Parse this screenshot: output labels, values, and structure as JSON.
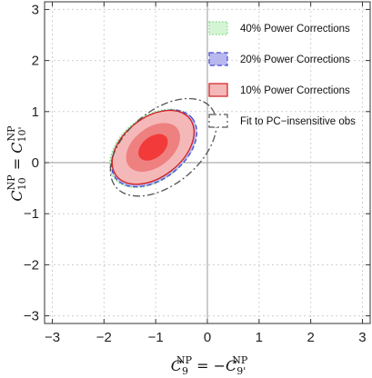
{
  "chart_data": {
    "type": "contour",
    "xlabel": {
      "main": "C",
      "sub1": "9",
      "sup1": "NP",
      "mid": " = −",
      "main2": "C",
      "sub2": "9'",
      "sup2": "NP"
    },
    "ylabel": {
      "main": "C",
      "sub1": "10",
      "sup1": "NP",
      "mid": " = ",
      "main2": "C",
      "sub2": "10'",
      "sup2": "NP"
    },
    "xlim": [
      -3.15,
      3.15
    ],
    "ylim": [
      -3.15,
      3.15
    ],
    "xticks": [
      -3,
      -2,
      -1,
      0,
      1,
      2,
      3
    ],
    "yticks": [
      -3,
      -2,
      -1,
      0,
      1,
      2,
      3
    ],
    "tick_labels_x": [
      "−3",
      "−2",
      "−1",
      "0",
      "1",
      "2",
      "3"
    ],
    "tick_labels_y": [
      "−3",
      "−2",
      "−1",
      "0",
      "1",
      "2",
      "3"
    ],
    "grid": true,
    "legend_position": "top-right",
    "series": [
      {
        "name": "40% Power Corrections",
        "color": "#7fd87f",
        "fill": "#d4f5d4",
        "style": "dotted",
        "center": [
          -1.05,
          0.28
        ],
        "axes": [
          0.95,
          0.62
        ],
        "angle_deg": -38,
        "rings": [
          1
        ]
      },
      {
        "name": "20% Power Corrections",
        "color": "#4a4ad0",
        "fill": "#b8b8ee",
        "style": "dashed",
        "center": [
          -1.03,
          0.28
        ],
        "axes": [
          0.94,
          0.6
        ],
        "angle_deg": -38,
        "rings": [
          1
        ]
      },
      {
        "name": "10% Power Corrections",
        "color": "#d21e1e",
        "fill": "#f4b8b8",
        "style": "solid",
        "center": [
          -1.05,
          0.3
        ],
        "axes": [
          0.9,
          0.58
        ],
        "angle_deg": -38,
        "rings": [
          1,
          0.66,
          0.36
        ]
      },
      {
        "name": "Fit to PC−insensitive obs",
        "color": "#555555",
        "fill": "none",
        "style": "dashdot",
        "center": [
          -0.85,
          0.3
        ],
        "axes": [
          1.2,
          0.72
        ],
        "angle_deg": -40,
        "rings": [
          1
        ]
      }
    ],
    "ring_fills_10pct": [
      "#f4b8b8",
      "#ee8080",
      "#f23a3a"
    ]
  }
}
